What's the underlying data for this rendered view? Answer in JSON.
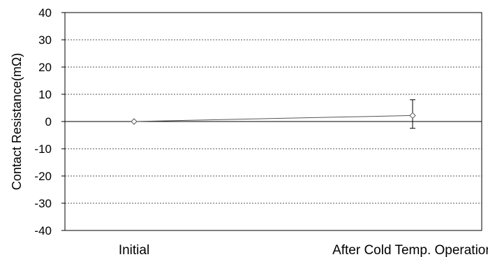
{
  "chart_data": {
    "type": "line",
    "title": "",
    "xlabel": "",
    "ylabel": "Contact Resistance(mΩ)",
    "categories": [
      "Initial",
      "After Cold Temp. Operation"
    ],
    "series": [
      {
        "values": [
          0,
          2.2
        ],
        "error_low": [
          0,
          -2.5
        ],
        "error_high": [
          0,
          8.0
        ],
        "marker": "diamond-open",
        "color": "#555555"
      }
    ],
    "ylim": [
      -40,
      40
    ],
    "yticks": [
      -40,
      -30,
      -20,
      -10,
      0,
      10,
      20,
      30,
      40
    ],
    "ytick_labels": [
      "-40",
      "-30",
      "-20",
      "-10",
      "0",
      "10",
      "20",
      "30",
      "40"
    ],
    "grid": "horizontal dashed",
    "legend": "none"
  }
}
